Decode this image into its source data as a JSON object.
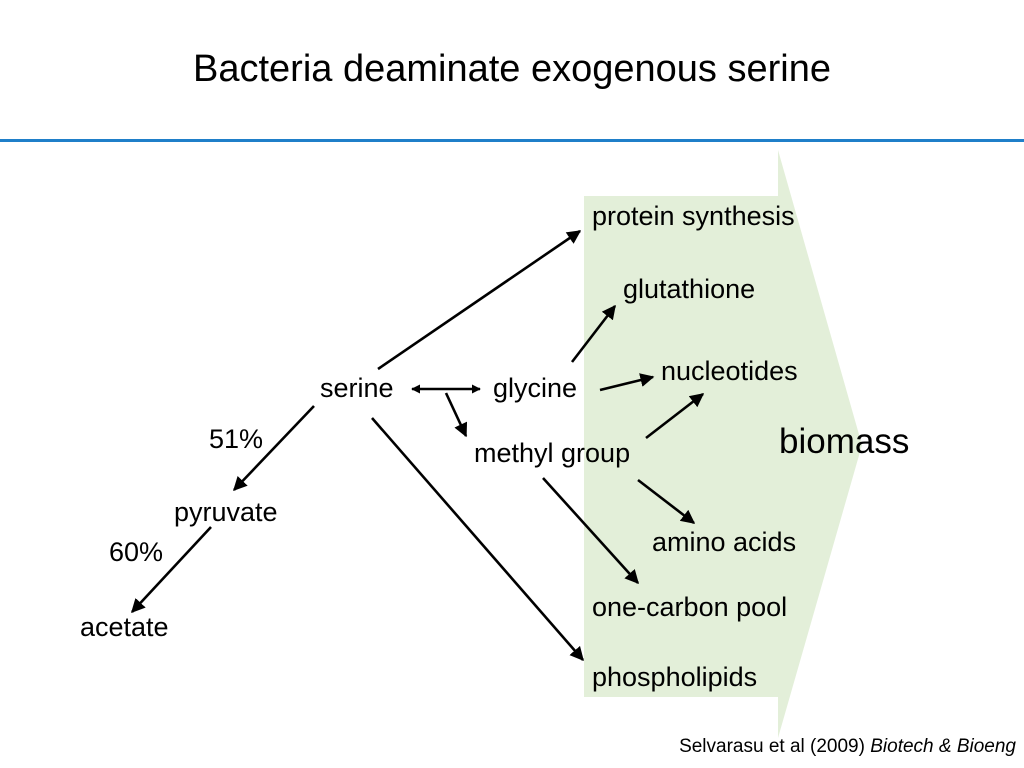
{
  "slide": {
    "title": "Bacteria deaminate exogenous serine"
  },
  "nodes": {
    "serine": "serine",
    "glycine": "glycine",
    "methyl_group": "methyl group",
    "pyruvate": "pyruvate",
    "acetate": "acetate",
    "protein_synthesis": "protein synthesis",
    "glutathione": "glutathione",
    "nucleotides": "nucleotides",
    "amino_acids": "amino acids",
    "one_carbon_pool": "one-carbon pool",
    "phospholipids": "phospholipids",
    "biomass": "biomass"
  },
  "edge_labels": {
    "serine_to_pyruvate": "51%",
    "pyruvate_to_acetate": "60%"
  },
  "citation": {
    "authors": "Selvarasu et al (2009)",
    "journal": "Biotech & Bioeng"
  },
  "colors": {
    "accent_rule": "#1f7fc9",
    "biomass_arrow": "#e3efd9"
  }
}
